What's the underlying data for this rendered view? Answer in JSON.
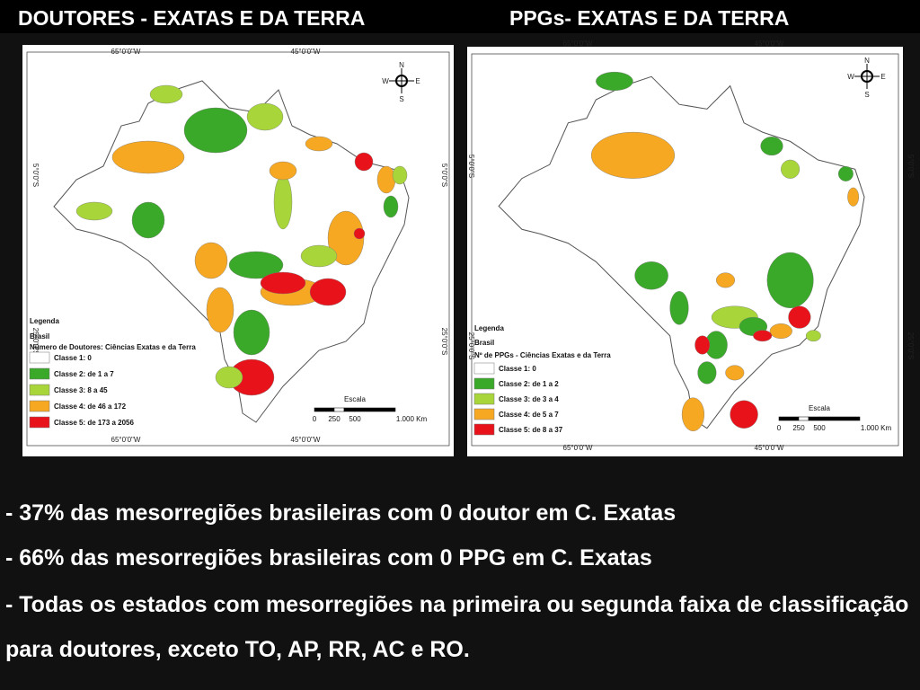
{
  "header": {
    "left_title": "DOUTORES - EXATAS E DA TERRA",
    "right_title": "PPGs- EXATAS E DA TERRA"
  },
  "maps": [
    {
      "coords": {
        "top": [
          "65°0'0\"W",
          "45°0'0\"W"
        ],
        "side": [
          "5°0'0\"S",
          "25°0'0\"S"
        ]
      },
      "compass": [
        "N",
        "W",
        "E",
        "S"
      ],
      "legend": {
        "heading": "Legenda",
        "layer": "Brasil",
        "title": "Número de Doutores: Ciências Exatas e da Terra",
        "classes": [
          {
            "label": "Classe 1: 0",
            "color": "#ffffff"
          },
          {
            "label": "Classe 2: de 1 a 7",
            "color": "#3aa829"
          },
          {
            "label": "Classe 3: 8 a 45",
            "color": "#a8d63a"
          },
          {
            "label": "Classe 4: de 46 a 172",
            "color": "#f7a823"
          },
          {
            "label": "Classe 5: de 173 a 2056",
            "color": "#e8131a"
          }
        ]
      },
      "scale": {
        "title": "Escala",
        "labels": [
          "0",
          "250",
          "500",
          "1.000 Km"
        ]
      }
    },
    {
      "coords": {
        "top": [
          "65°0'0\"W",
          "45°0'0\"W"
        ],
        "side": [
          "5°0'0\"S",
          "25°0'0\"S"
        ]
      },
      "compass": [
        "N",
        "W",
        "E",
        "S"
      ],
      "legend": {
        "heading": "Legenda",
        "layer": "Brasil",
        "title": "Nº de PPGs - Ciências Exatas e da Terra",
        "classes": [
          {
            "label": "Classe 1: 0",
            "color": "#ffffff"
          },
          {
            "label": "Classe 2: de 1 a 2",
            "color": "#3aa829"
          },
          {
            "label": "Classe 3: de 3 a 4",
            "color": "#a8d63a"
          },
          {
            "label": "Classe 4: de 5 a 7",
            "color": "#f7a823"
          },
          {
            "label": "Classe 5: de 8 a 37",
            "color": "#e8131a"
          }
        ]
      },
      "scale": {
        "title": "Escala",
        "labels": [
          "0",
          "250",
          "500",
          "1.000 Km"
        ]
      }
    }
  ],
  "bullets": [
    "- 37% das mesorregiões brasileiras com 0 doutor em C. Exatas",
    "- 66% das mesorregiões brasileiras com 0 PPG em C. Exatas",
    "- Todas os estados com mesorregiões na primeira ou segunda faixa de classificação para doutores, exceto TO, AP, RR, AC e RO."
  ]
}
